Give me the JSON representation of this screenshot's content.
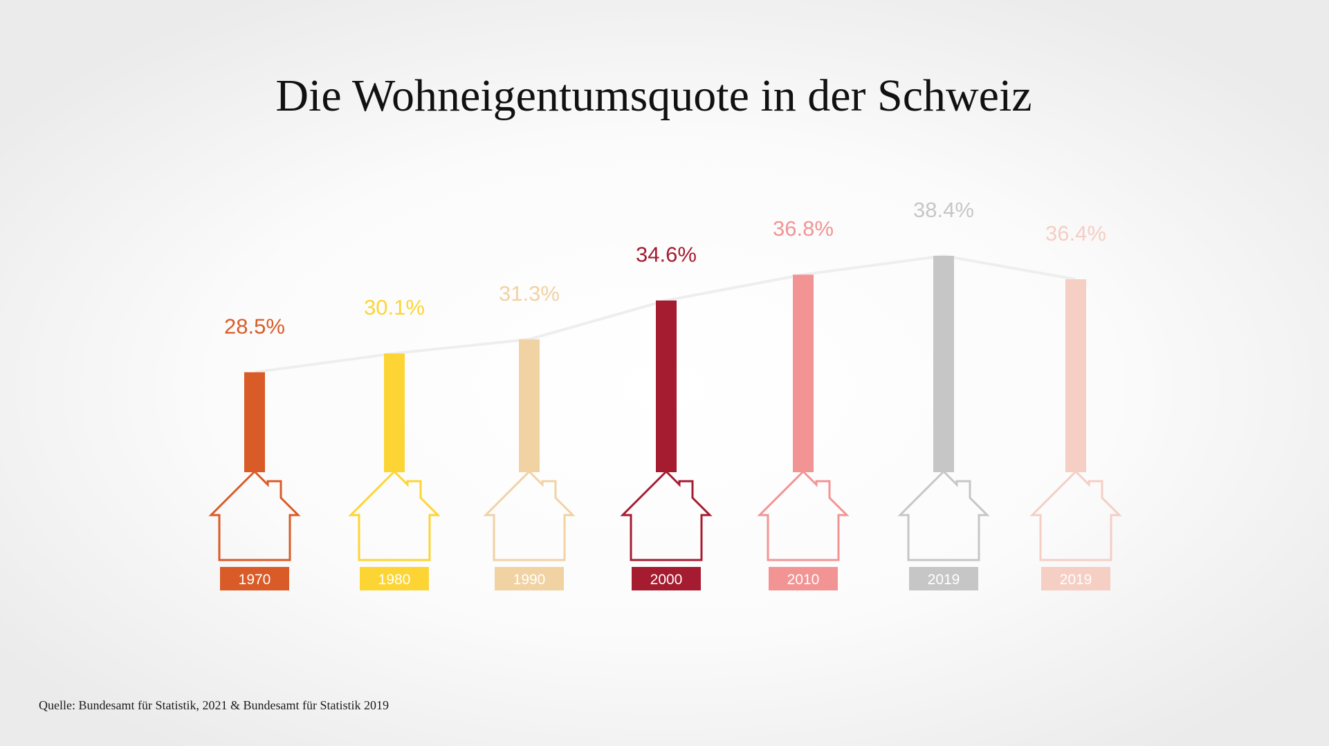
{
  "chart_data": {
    "type": "bar",
    "title": "Die Wohneigentumsquote in der Schweiz",
    "source": "Quelle: Bundesamt für Statistik, 2021 & Bundesamt für Statistik 2019",
    "categories": [
      "1970",
      "1980",
      "1990",
      "2000",
      "2010",
      "2019",
      "2019"
    ],
    "values": [
      28.5,
      30.1,
      31.3,
      34.6,
      36.8,
      38.4,
      36.4
    ],
    "value_labels": [
      "28.5%",
      "30.1%",
      "31.3%",
      "34.6%",
      "36.8%",
      "38.4%",
      "36.4%"
    ],
    "colors": [
      "#d95b27",
      "#fcd535",
      "#f1d2a3",
      "#a51c30",
      "#f29494",
      "#c6c6c6",
      "#f5cec4"
    ],
    "connector_line_color": "#eeeeee",
    "icon": "house-icon",
    "grid": false,
    "legend": "none"
  }
}
